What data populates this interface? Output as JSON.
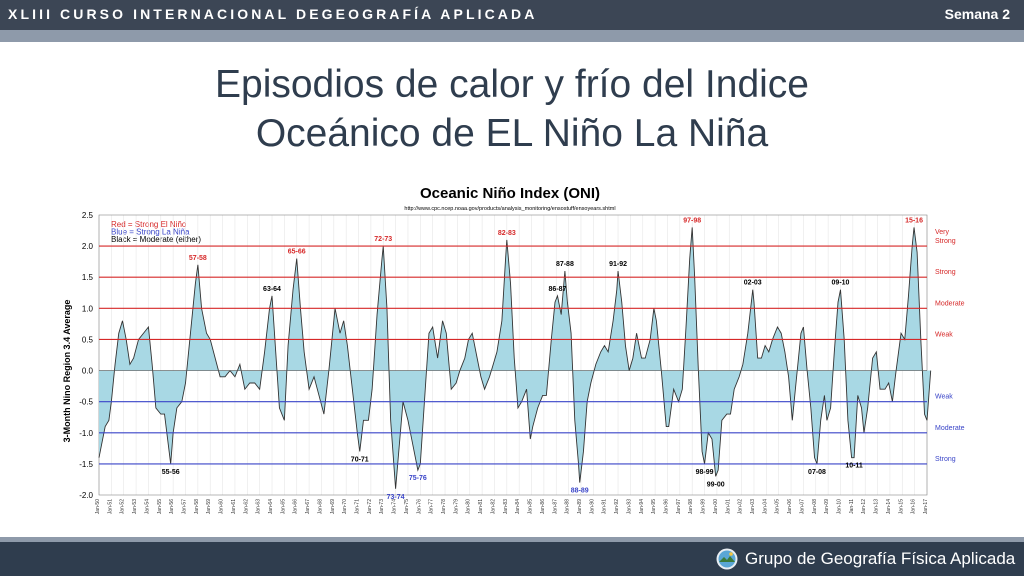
{
  "header": {
    "course_title": "XLIII CURSO INTERNACIONAL DEGEOGRAFÍA APLICADA",
    "week": "Semana 2"
  },
  "slide": {
    "title_line1": "Episodios de calor y frío del Indice",
    "title_line2": "Oceánico de EL Niño La Niña"
  },
  "footer": {
    "group_name": "Grupo de Geografía Física Aplicada",
    "logo_icon": "globe-landscape-icon"
  },
  "colors": {
    "header_bg": "#3c4655",
    "title_text": "#2f3d4e",
    "fill": "#a8d8e4",
    "warm_line": "#d62828",
    "cold_line": "#3a45c8"
  },
  "chart_data": {
    "type": "area",
    "title": "Oceanic Niño Index (ONI)",
    "subtitle": "http://www.cpc.ncep.noaa.gov/products/analysis_monitoring/ensostuff/ensoyears.shtml",
    "ylabel": "3-Month Nino Region 3.4 Average",
    "ylim": [
      -2.0,
      2.5
    ],
    "yticks": [
      "2.5",
      "2.0",
      "1.5",
      "1.0",
      "0.5",
      "0.0",
      "-0.5",
      "-1.0",
      "-1.5",
      "-2.0"
    ],
    "legend": [
      "Red = Strong El Niño",
      "Blue = Strong La Niña",
      "Black = Moderate (either)"
    ],
    "thresholds": [
      {
        "value": 2.0,
        "label": "Very Strong",
        "side": "warm"
      },
      {
        "value": 1.5,
        "label": "Strong",
        "side": "warm"
      },
      {
        "value": 1.0,
        "label": "Moderate",
        "side": "warm"
      },
      {
        "value": 0.5,
        "label": "Weak",
        "side": "warm"
      },
      {
        "value": -0.5,
        "label": "Weak",
        "side": "cold"
      },
      {
        "value": -1.0,
        "label": "Moderate",
        "side": "cold"
      },
      {
        "value": -1.5,
        "label": "Strong",
        "side": "cold"
      }
    ],
    "x_tick_labels": [
      "Jan-50",
      "Jan-51",
      "Jan-52",
      "Jan-53",
      "Jan-54",
      "Jan-55",
      "Jan-56",
      "Jan-57",
      "Jan-58",
      "Jan-59",
      "Jan-60",
      "Jan-61",
      "Jan-62",
      "Jan-63",
      "Jan-64",
      "Jan-65",
      "Jan-66",
      "Jan-67",
      "Jan-68",
      "Jan-69",
      "Jan-70",
      "Jan-71",
      "Jan-72",
      "Jan-73",
      "Jan-74",
      "Jan-75",
      "Jan-76",
      "Jan-77",
      "Jan-78",
      "Jan-79",
      "Jan-80",
      "Jan-81",
      "Jan-82",
      "Jan-83",
      "Jan-84",
      "Jan-85",
      "Jan-86",
      "Jan-87",
      "Jan-88",
      "Jan-89",
      "Jan-90",
      "Jan-91",
      "Jan-92",
      "Jan-93",
      "Jan-94",
      "Jan-95",
      "Jan-96",
      "Jan-97",
      "Jan-98",
      "Jan-99",
      "Jan-00",
      "Jan-01",
      "Jan-02",
      "Jan-03",
      "Jan-04",
      "Jan-05",
      "Jan-06",
      "Jan-07",
      "Jan-08",
      "Jan-09",
      "Jan-10",
      "Jan-11",
      "Jan-12",
      "Jan-13",
      "Jan-14",
      "Jan-15",
      "Jan-16",
      "Jan-17"
    ],
    "x_range": [
      1950.0,
      2017.0
    ],
    "points": [
      [
        1950.0,
        -1.4
      ],
      [
        1950.2,
        -1.2
      ],
      [
        1950.5,
        -0.9
      ],
      [
        1950.8,
        -0.8
      ],
      [
        1951.0,
        -0.5
      ],
      [
        1951.3,
        0.1
      ],
      [
        1951.6,
        0.6
      ],
      [
        1951.9,
        0.8
      ],
      [
        1952.2,
        0.5
      ],
      [
        1952.5,
        0.1
      ],
      [
        1952.8,
        0.2
      ],
      [
        1953.2,
        0.5
      ],
      [
        1953.6,
        0.6
      ],
      [
        1954.0,
        0.7
      ],
      [
        1954.3,
        0.1
      ],
      [
        1954.6,
        -0.6
      ],
      [
        1955.0,
        -0.7
      ],
      [
        1955.3,
        -0.7
      ],
      [
        1955.8,
        -1.5
      ],
      [
        1956.0,
        -1.0
      ],
      [
        1956.3,
        -0.6
      ],
      [
        1956.7,
        -0.5
      ],
      [
        1957.0,
        -0.2
      ],
      [
        1957.4,
        0.6
      ],
      [
        1957.8,
        1.4
      ],
      [
        1958.0,
        1.7
      ],
      [
        1958.3,
        1.0
      ],
      [
        1958.7,
        0.6
      ],
      [
        1959.0,
        0.5
      ],
      [
        1959.4,
        0.2
      ],
      [
        1959.8,
        -0.1
      ],
      [
        1960.2,
        -0.1
      ],
      [
        1960.6,
        0.0
      ],
      [
        1961.0,
        -0.1
      ],
      [
        1961.4,
        0.1
      ],
      [
        1961.8,
        -0.3
      ],
      [
        1962.2,
        -0.2
      ],
      [
        1962.6,
        -0.2
      ],
      [
        1963.0,
        -0.3
      ],
      [
        1963.4,
        0.3
      ],
      [
        1963.8,
        1.0
      ],
      [
        1964.0,
        1.2
      ],
      [
        1964.3,
        0.3
      ],
      [
        1964.6,
        -0.6
      ],
      [
        1965.0,
        -0.8
      ],
      [
        1965.3,
        0.4
      ],
      [
        1965.7,
        1.3
      ],
      [
        1966.0,
        1.8
      ],
      [
        1966.3,
        1.0
      ],
      [
        1966.6,
        0.3
      ],
      [
        1967.0,
        -0.3
      ],
      [
        1967.4,
        -0.1
      ],
      [
        1967.8,
        -0.4
      ],
      [
        1968.2,
        -0.7
      ],
      [
        1968.6,
        0.0
      ],
      [
        1968.9,
        0.6
      ],
      [
        1969.1,
        1.0
      ],
      [
        1969.5,
        0.6
      ],
      [
        1969.8,
        0.8
      ],
      [
        1970.1,
        0.4
      ],
      [
        1970.5,
        -0.3
      ],
      [
        1970.9,
        -1.0
      ],
      [
        1971.1,
        -1.3
      ],
      [
        1971.4,
        -0.8
      ],
      [
        1971.8,
        -0.8
      ],
      [
        1972.1,
        -0.3
      ],
      [
        1972.5,
        0.9
      ],
      [
        1972.9,
        1.8
      ],
      [
        1973.0,
        2.0
      ],
      [
        1973.3,
        1.0
      ],
      [
        1973.6,
        -0.8
      ],
      [
        1974.0,
        -1.9
      ],
      [
        1974.3,
        -1.2
      ],
      [
        1974.6,
        -0.5
      ],
      [
        1975.0,
        -0.8
      ],
      [
        1975.4,
        -1.2
      ],
      [
        1975.8,
        -1.6
      ],
      [
        1976.0,
        -1.5
      ],
      [
        1976.3,
        -0.6
      ],
      [
        1976.7,
        0.6
      ],
      [
        1977.0,
        0.7
      ],
      [
        1977.4,
        0.2
      ],
      [
        1977.8,
        0.8
      ],
      [
        1978.1,
        0.6
      ],
      [
        1978.5,
        -0.3
      ],
      [
        1978.9,
        -0.2
      ],
      [
        1979.2,
        0.0
      ],
      [
        1979.6,
        0.2
      ],
      [
        1979.9,
        0.5
      ],
      [
        1980.2,
        0.6
      ],
      [
        1980.6,
        0.2
      ],
      [
        1980.9,
        -0.1
      ],
      [
        1981.2,
        -0.3
      ],
      [
        1981.6,
        -0.1
      ],
      [
        1981.9,
        0.1
      ],
      [
        1982.2,
        0.3
      ],
      [
        1982.6,
        0.8
      ],
      [
        1982.9,
        1.8
      ],
      [
        1983.0,
        2.1
      ],
      [
        1983.3,
        1.4
      ],
      [
        1983.6,
        0.2
      ],
      [
        1983.9,
        -0.6
      ],
      [
        1984.2,
        -0.5
      ],
      [
        1984.6,
        -0.3
      ],
      [
        1984.9,
        -1.1
      ],
      [
        1985.1,
        -0.9
      ],
      [
        1985.5,
        -0.6
      ],
      [
        1985.9,
        -0.4
      ],
      [
        1986.2,
        -0.4
      ],
      [
        1986.6,
        0.5
      ],
      [
        1986.9,
        1.1
      ],
      [
        1987.1,
        1.2
      ],
      [
        1987.4,
        0.9
      ],
      [
        1987.7,
        1.6
      ],
      [
        1987.9,
        1.1
      ],
      [
        1988.2,
        0.6
      ],
      [
        1988.5,
        -0.8
      ],
      [
        1988.8,
        -1.5
      ],
      [
        1988.9,
        -1.8
      ],
      [
        1989.2,
        -1.3
      ],
      [
        1989.5,
        -0.5
      ],
      [
        1989.8,
        -0.2
      ],
      [
        1990.2,
        0.1
      ],
      [
        1990.6,
        0.3
      ],
      [
        1990.9,
        0.4
      ],
      [
        1991.2,
        0.3
      ],
      [
        1991.6,
        0.8
      ],
      [
        1991.9,
        1.3
      ],
      [
        1992.0,
        1.6
      ],
      [
        1992.3,
        1.1
      ],
      [
        1992.6,
        0.4
      ],
      [
        1992.9,
        0.0
      ],
      [
        1993.2,
        0.2
      ],
      [
        1993.5,
        0.6
      ],
      [
        1993.9,
        0.2
      ],
      [
        1994.2,
        0.2
      ],
      [
        1994.6,
        0.5
      ],
      [
        1994.9,
        1.0
      ],
      [
        1995.1,
        0.8
      ],
      [
        1995.5,
        0.0
      ],
      [
        1995.9,
        -0.9
      ],
      [
        1996.1,
        -0.9
      ],
      [
        1996.5,
        -0.3
      ],
      [
        1996.9,
        -0.5
      ],
      [
        1997.2,
        -0.3
      ],
      [
        1997.5,
        0.7
      ],
      [
        1997.8,
        1.8
      ],
      [
        1998.0,
        2.3
      ],
      [
        1998.2,
        1.5
      ],
      [
        1998.5,
        0.0
      ],
      [
        1998.8,
        -1.3
      ],
      [
        1999.0,
        -1.5
      ],
      [
        1999.3,
        -1.0
      ],
      [
        1999.6,
        -1.1
      ],
      [
        1999.9,
        -1.7
      ],
      [
        2000.1,
        -1.6
      ],
      [
        2000.4,
        -0.8
      ],
      [
        2000.8,
        -0.7
      ],
      [
        2001.1,
        -0.7
      ],
      [
        2001.4,
        -0.3
      ],
      [
        2001.8,
        -0.1
      ],
      [
        2002.1,
        0.1
      ],
      [
        2002.5,
        0.6
      ],
      [
        2002.9,
        1.3
      ],
      [
        2003.0,
        1.1
      ],
      [
        2003.3,
        0.2
      ],
      [
        2003.6,
        0.2
      ],
      [
        2003.9,
        0.4
      ],
      [
        2004.2,
        0.3
      ],
      [
        2004.5,
        0.5
      ],
      [
        2004.9,
        0.7
      ],
      [
        2005.2,
        0.6
      ],
      [
        2005.5,
        0.3
      ],
      [
        2005.8,
        -0.1
      ],
      [
        2006.1,
        -0.8
      ],
      [
        2006.4,
        -0.2
      ],
      [
        2006.8,
        0.6
      ],
      [
        2007.0,
        0.7
      ],
      [
        2007.3,
        0.0
      ],
      [
        2007.6,
        -0.6
      ],
      [
        2007.9,
        -1.4
      ],
      [
        2008.1,
        -1.5
      ],
      [
        2008.4,
        -0.8
      ],
      [
        2008.7,
        -0.4
      ],
      [
        2008.9,
        -0.8
      ],
      [
        2009.2,
        -0.6
      ],
      [
        2009.5,
        0.3
      ],
      [
        2009.8,
        1.1
      ],
      [
        2010.0,
        1.3
      ],
      [
        2010.3,
        0.5
      ],
      [
        2010.6,
        -0.8
      ],
      [
        2010.9,
        -1.4
      ],
      [
        2011.1,
        -1.4
      ],
      [
        2011.4,
        -0.4
      ],
      [
        2011.7,
        -0.6
      ],
      [
        2011.9,
        -1.0
      ],
      [
        2012.2,
        -0.6
      ],
      [
        2012.6,
        0.2
      ],
      [
        2012.9,
        0.3
      ],
      [
        2013.2,
        -0.3
      ],
      [
        2013.6,
        -0.3
      ],
      [
        2013.9,
        -0.2
      ],
      [
        2014.2,
        -0.5
      ],
      [
        2014.5,
        0.0
      ],
      [
        2014.9,
        0.6
      ],
      [
        2015.2,
        0.5
      ],
      [
        2015.5,
        1.2
      ],
      [
        2015.8,
        2.0
      ],
      [
        2015.95,
        2.3
      ],
      [
        2016.2,
        1.9
      ],
      [
        2016.5,
        0.5
      ],
      [
        2016.8,
        -0.7
      ],
      [
        2017.0,
        -0.8
      ],
      [
        2017.15,
        -0.4
      ],
      [
        2017.3,
        0.0
      ]
    ],
    "annotations": [
      {
        "label": "57-58",
        "x": 1958.0,
        "y": 1.7,
        "color": "red"
      },
      {
        "label": "65-66",
        "x": 1966.0,
        "y": 1.8,
        "color": "red"
      },
      {
        "label": "72-73",
        "x": 1973.0,
        "y": 2.0,
        "color": "red"
      },
      {
        "label": "82-83",
        "x": 1983.0,
        "y": 2.1,
        "color": "red"
      },
      {
        "label": "97-98",
        "x": 1998.0,
        "y": 2.3,
        "color": "red"
      },
      {
        "label": "15-16",
        "x": 2015.95,
        "y": 2.3,
        "color": "red"
      },
      {
        "label": "63-64",
        "x": 1964.0,
        "y": 1.2,
        "color": "black"
      },
      {
        "label": "87-88",
        "x": 1987.7,
        "y": 1.6,
        "color": "black"
      },
      {
        "label": "86-87",
        "x": 1987.1,
        "y": 1.2,
        "color": "black"
      },
      {
        "label": "91-92",
        "x": 1992.0,
        "y": 1.6,
        "color": "black"
      },
      {
        "label": "02-03",
        "x": 2002.9,
        "y": 1.3,
        "color": "black"
      },
      {
        "label": "09-10",
        "x": 2010.0,
        "y": 1.3,
        "color": "black"
      },
      {
        "label": "55-56",
        "x": 1955.8,
        "y": -1.5,
        "color": "black"
      },
      {
        "label": "70-71",
        "x": 1971.1,
        "y": -1.3,
        "color": "black"
      },
      {
        "label": "73-74",
        "x": 1974.0,
        "y": -1.9,
        "color": "blue"
      },
      {
        "label": "75-76",
        "x": 1975.8,
        "y": -1.6,
        "color": "blue"
      },
      {
        "label": "88-89",
        "x": 1988.9,
        "y": -1.8,
        "color": "blue"
      },
      {
        "label": "98-99",
        "x": 1999.0,
        "y": -1.5,
        "color": "black"
      },
      {
        "label": "99-00",
        "x": 1999.9,
        "y": -1.7,
        "color": "black"
      },
      {
        "label": "07-08",
        "x": 2008.1,
        "y": -1.5,
        "color": "black"
      },
      {
        "label": "10-11",
        "x": 2011.1,
        "y": -1.4,
        "color": "black"
      }
    ]
  }
}
